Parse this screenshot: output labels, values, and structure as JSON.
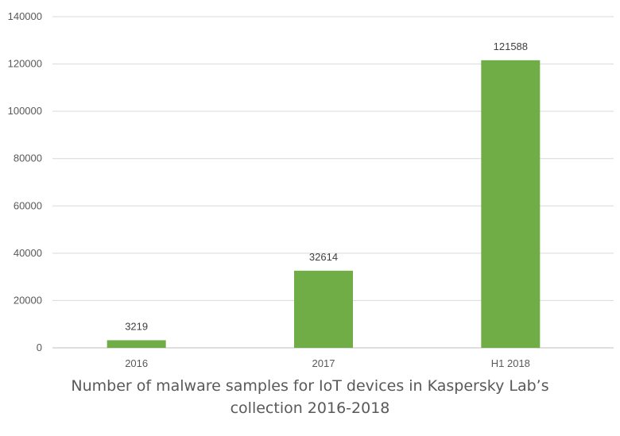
{
  "chart_data": {
    "type": "bar",
    "categories": [
      "2016",
      "2017",
      "H1 2018"
    ],
    "values": [
      3219,
      32614,
      121588
    ],
    "data_labels": [
      "3219",
      "32614",
      "121588"
    ],
    "ylim": [
      0,
      140000
    ],
    "y_ticks": [
      0,
      20000,
      40000,
      60000,
      80000,
      100000,
      120000,
      140000
    ],
    "y_tick_labels": [
      "0",
      "20000",
      "40000",
      "60000",
      "80000",
      "100000",
      "120000",
      "140000"
    ],
    "xlabel": "",
    "ylabel": "",
    "grid": true,
    "legend": "none",
    "bar_color": "#70ad47",
    "caption_lines": [
      "Number of malware samples for IoT devices in Kaspersky Lab’s",
      "collection 2016-2018"
    ]
  }
}
